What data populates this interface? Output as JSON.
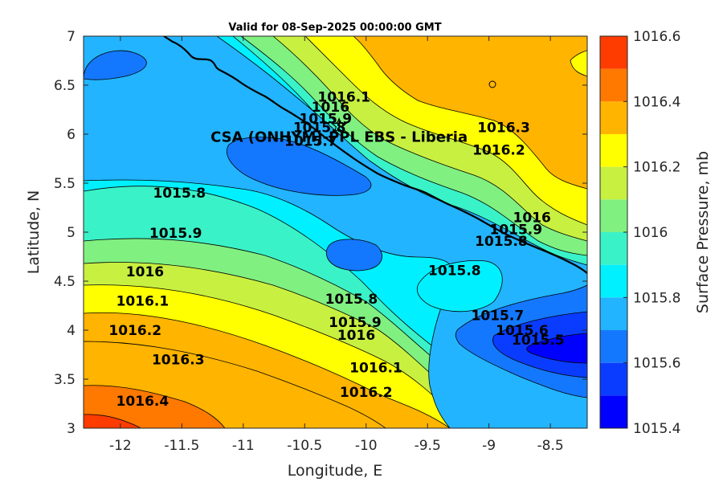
{
  "chart_data": {
    "type": "contour",
    "title": "Valid for 08-Sep-2025 00:00:00 GMT",
    "xlabel": "Longitude, E",
    "ylabel": "Latitude, N",
    "xlim": [
      -12.3,
      -8.2
    ],
    "ylim": [
      3,
      7
    ],
    "xticks": [
      "-12",
      "-11.5",
      "-11",
      "-10.5",
      "-10",
      "-9.5",
      "-9",
      "-8.5"
    ],
    "xtick_values": [
      -12,
      -11.5,
      -11,
      -10.5,
      -10,
      -9.5,
      -9,
      -8.5
    ],
    "yticks": [
      "3",
      "3.5",
      "4",
      "4.5",
      "5",
      "5.5",
      "6",
      "6.5",
      "7"
    ],
    "ytick_values": [
      3,
      3.5,
      4,
      4.5,
      5,
      5.5,
      6,
      6.5,
      7
    ],
    "colorbar": {
      "label": "Surface Pressure, mb",
      "range": [
        1015.4,
        1016.6
      ],
      "tick_labels": [
        "1016.6",
        "1016.4",
        "1016.2",
        "1016",
        "1015.8",
        "1015.6",
        "1015.4"
      ],
      "tick_values": [
        1016.6,
        1016.4,
        1016.2,
        1016.0,
        1015.8,
        1015.6,
        1015.4
      ],
      "levels": [
        1015.4,
        1015.5,
        1015.6,
        1015.7,
        1015.8,
        1015.9,
        1016.0,
        1016.1,
        1016.2,
        1016.3,
        1016.4,
        1016.5,
        1016.6
      ],
      "colors": [
        "#0000ff",
        "#0a3cff",
        "#1478ff",
        "#22b4ff",
        "#00f0ff",
        "#3af2c8",
        "#80f080",
        "#c8f040",
        "#ffff00",
        "#ffb400",
        "#ff7800",
        "#ff3c00"
      ]
    },
    "contour_labels": [
      {
        "text": "1016.1",
        "x": -10.18,
        "y": 6.38
      },
      {
        "text": "1016",
        "x": -10.29,
        "y": 6.28
      },
      {
        "text": "1015.9",
        "x": -10.33,
        "y": 6.16
      },
      {
        "text": "1015.8",
        "x": -10.38,
        "y": 6.07
      },
      {
        "text": "1015.7",
        "x": -10.45,
        "y": 5.93
      },
      {
        "text": "1015.8",
        "x": -11.52,
        "y": 5.4
      },
      {
        "text": "1015.9",
        "x": -11.55,
        "y": 4.99
      },
      {
        "text": "1016",
        "x": -11.8,
        "y": 4.6
      },
      {
        "text": "1016.1",
        "x": -11.82,
        "y": 4.3
      },
      {
        "text": "1016.2",
        "x": -11.88,
        "y": 4.0
      },
      {
        "text": "1016.3",
        "x": -11.53,
        "y": 3.7
      },
      {
        "text": "1016.4",
        "x": -11.82,
        "y": 3.28
      },
      {
        "text": "1016.3",
        "x": -8.88,
        "y": 6.07
      },
      {
        "text": "1016.2",
        "x": -8.92,
        "y": 5.84
      },
      {
        "text": "1016",
        "x": -8.65,
        "y": 5.15
      },
      {
        "text": "1015.9",
        "x": -8.78,
        "y": 5.03
      },
      {
        "text": "1015.8",
        "x": -8.9,
        "y": 4.91
      },
      {
        "text": "1015.8",
        "x": -9.28,
        "y": 4.61
      },
      {
        "text": "1015.8",
        "x": -10.12,
        "y": 4.32
      },
      {
        "text": "1015.9",
        "x": -10.09,
        "y": 4.08
      },
      {
        "text": "1016",
        "x": -10.08,
        "y": 3.95
      },
      {
        "text": "1016.1",
        "x": -9.92,
        "y": 3.62
      },
      {
        "text": "1016.2",
        "x": -10.0,
        "y": 3.37
      },
      {
        "text": "1015.7",
        "x": -8.93,
        "y": 4.15
      },
      {
        "text": "1015.6",
        "x": -8.73,
        "y": 4.0
      },
      {
        "text": "1015.5",
        "x": -8.6,
        "y": 3.9
      }
    ],
    "annotation": {
      "text": "CSA (ONHYM)-PPL EBS  - Liberia",
      "x": -10.22,
      "y": 5.97
    }
  }
}
